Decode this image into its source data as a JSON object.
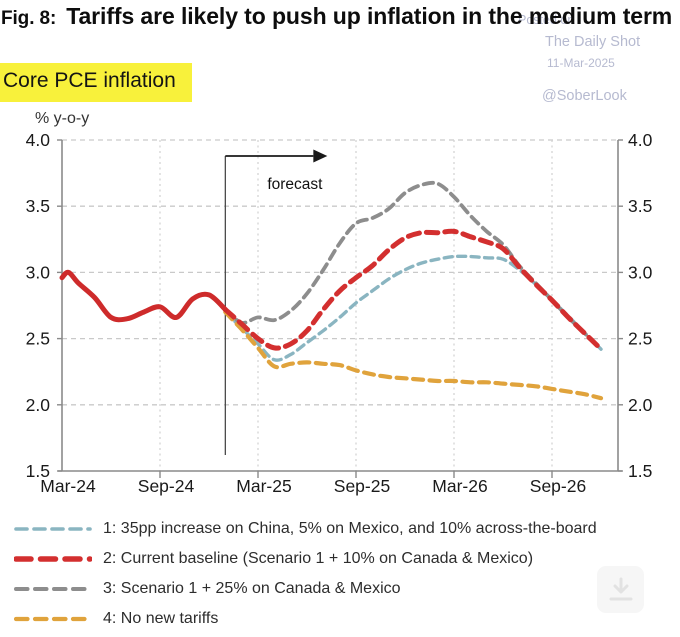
{
  "header": {
    "figure_label": "Fig. 8:",
    "title": "Tariffs are likely to push up inflation in the medium term",
    "subtitle": "Core PCE inflation",
    "subtitle_highlight_color": "#f8f13b"
  },
  "watermark": {
    "posted_on": "Posted on",
    "source": "The Daily Shot",
    "date": "11-Mar-2025",
    "handle": "@SoberLook",
    "color": "#b6bad0"
  },
  "chart_data": {
    "type": "line",
    "title": "Core PCE inflation",
    "y_axis_label": "% y-o-y",
    "ylim": [
      1.5,
      4.0
    ],
    "y_ticks": [
      4.0,
      3.5,
      3.0,
      2.5,
      2.0,
      1.5
    ],
    "x_tick_labels": [
      "Mar-24",
      "Sep-24",
      "Mar-25",
      "Sep-25",
      "Mar-26",
      "Sep-26"
    ],
    "x_tick_months": [
      0,
      6,
      12,
      18,
      24,
      30
    ],
    "xlim_months": [
      0,
      34
    ],
    "x_unit": "months since Mar-2024, monthly data",
    "grid": true,
    "annotation": {
      "label": "forecast",
      "at_month": 10
    },
    "axis_color": "#8a8a8a",
    "grid_color": "#c9c9c9",
    "series": [
      {
        "id": "history",
        "name": "Core PCE inflation (actual, through Jan-25)",
        "color": "#ce2b2b",
        "style": "solid",
        "in_legend": false,
        "x_months": [
          0,
          0.4,
          1,
          2,
          3,
          4,
          5,
          6,
          7,
          8,
          9,
          10
        ],
        "values": [
          2.96,
          3.0,
          2.92,
          2.81,
          2.66,
          2.65,
          2.7,
          2.74,
          2.66,
          2.8,
          2.83,
          2.72
        ]
      },
      {
        "id": "scenario1",
        "name": "1: 35pp increase on China, 5% on Mexico, and 10% across-the-board",
        "color": "#8ab5c1",
        "style": "dashed",
        "in_legend": true,
        "x_months": [
          10,
          11,
          12,
          13,
          14,
          15,
          16,
          17,
          18,
          19,
          20,
          21,
          22,
          23,
          24,
          25,
          26,
          27,
          28,
          29,
          30,
          31,
          32,
          33
        ],
        "values": [
          2.7,
          2.58,
          2.46,
          2.34,
          2.38,
          2.47,
          2.56,
          2.66,
          2.77,
          2.86,
          2.95,
          3.02,
          3.07,
          3.1,
          3.12,
          3.12,
          3.11,
          3.1,
          3.02,
          2.91,
          2.79,
          2.67,
          2.54,
          2.42
        ]
      },
      {
        "id": "scenario2",
        "name": "2: Current baseline (Scenario 1 + 10% on Canada & Mexico)",
        "color": "#d32f2f",
        "style": "dashed",
        "in_legend": true,
        "x_months": [
          10,
          11,
          12,
          13,
          14,
          15,
          16,
          17,
          18,
          19,
          20,
          21,
          22,
          23,
          24,
          25,
          26,
          27,
          28,
          29,
          30,
          31,
          32,
          33
        ],
        "values": [
          2.72,
          2.61,
          2.5,
          2.43,
          2.46,
          2.56,
          2.72,
          2.86,
          2.96,
          3.05,
          3.17,
          3.26,
          3.3,
          3.3,
          3.31,
          3.27,
          3.23,
          3.18,
          3.04,
          2.91,
          2.79,
          2.66,
          2.54,
          2.42
        ]
      },
      {
        "id": "scenario3",
        "name": "3: Scenario 1 + 25% on Canada & Mexico",
        "color": "#8d8d8d",
        "style": "dashed",
        "in_legend": true,
        "x_months": [
          10,
          11,
          12,
          13,
          14,
          15,
          16,
          17,
          18,
          19,
          20,
          21,
          22,
          23,
          24,
          25,
          26,
          27,
          28,
          29,
          30,
          31,
          32,
          33
        ],
        "values": [
          2.72,
          2.62,
          2.66,
          2.64,
          2.71,
          2.84,
          3.02,
          3.22,
          3.37,
          3.41,
          3.48,
          3.6,
          3.66,
          3.67,
          3.57,
          3.43,
          3.31,
          3.21,
          3.05,
          2.92,
          2.79,
          2.66,
          2.54,
          2.42
        ]
      },
      {
        "id": "scenario4",
        "name": "4: No new tariffs",
        "color": "#e0a33c",
        "style": "dashed",
        "in_legend": true,
        "x_months": [
          10,
          11,
          12,
          13,
          14,
          15,
          16,
          17,
          18,
          19,
          20,
          21,
          22,
          23,
          24,
          25,
          26,
          27,
          28,
          29,
          30,
          31,
          32,
          33
        ],
        "values": [
          2.7,
          2.57,
          2.43,
          2.29,
          2.31,
          2.32,
          2.31,
          2.3,
          2.26,
          2.23,
          2.21,
          2.2,
          2.19,
          2.18,
          2.18,
          2.17,
          2.17,
          2.16,
          2.15,
          2.14,
          2.12,
          2.1,
          2.08,
          2.05
        ]
      }
    ]
  }
}
